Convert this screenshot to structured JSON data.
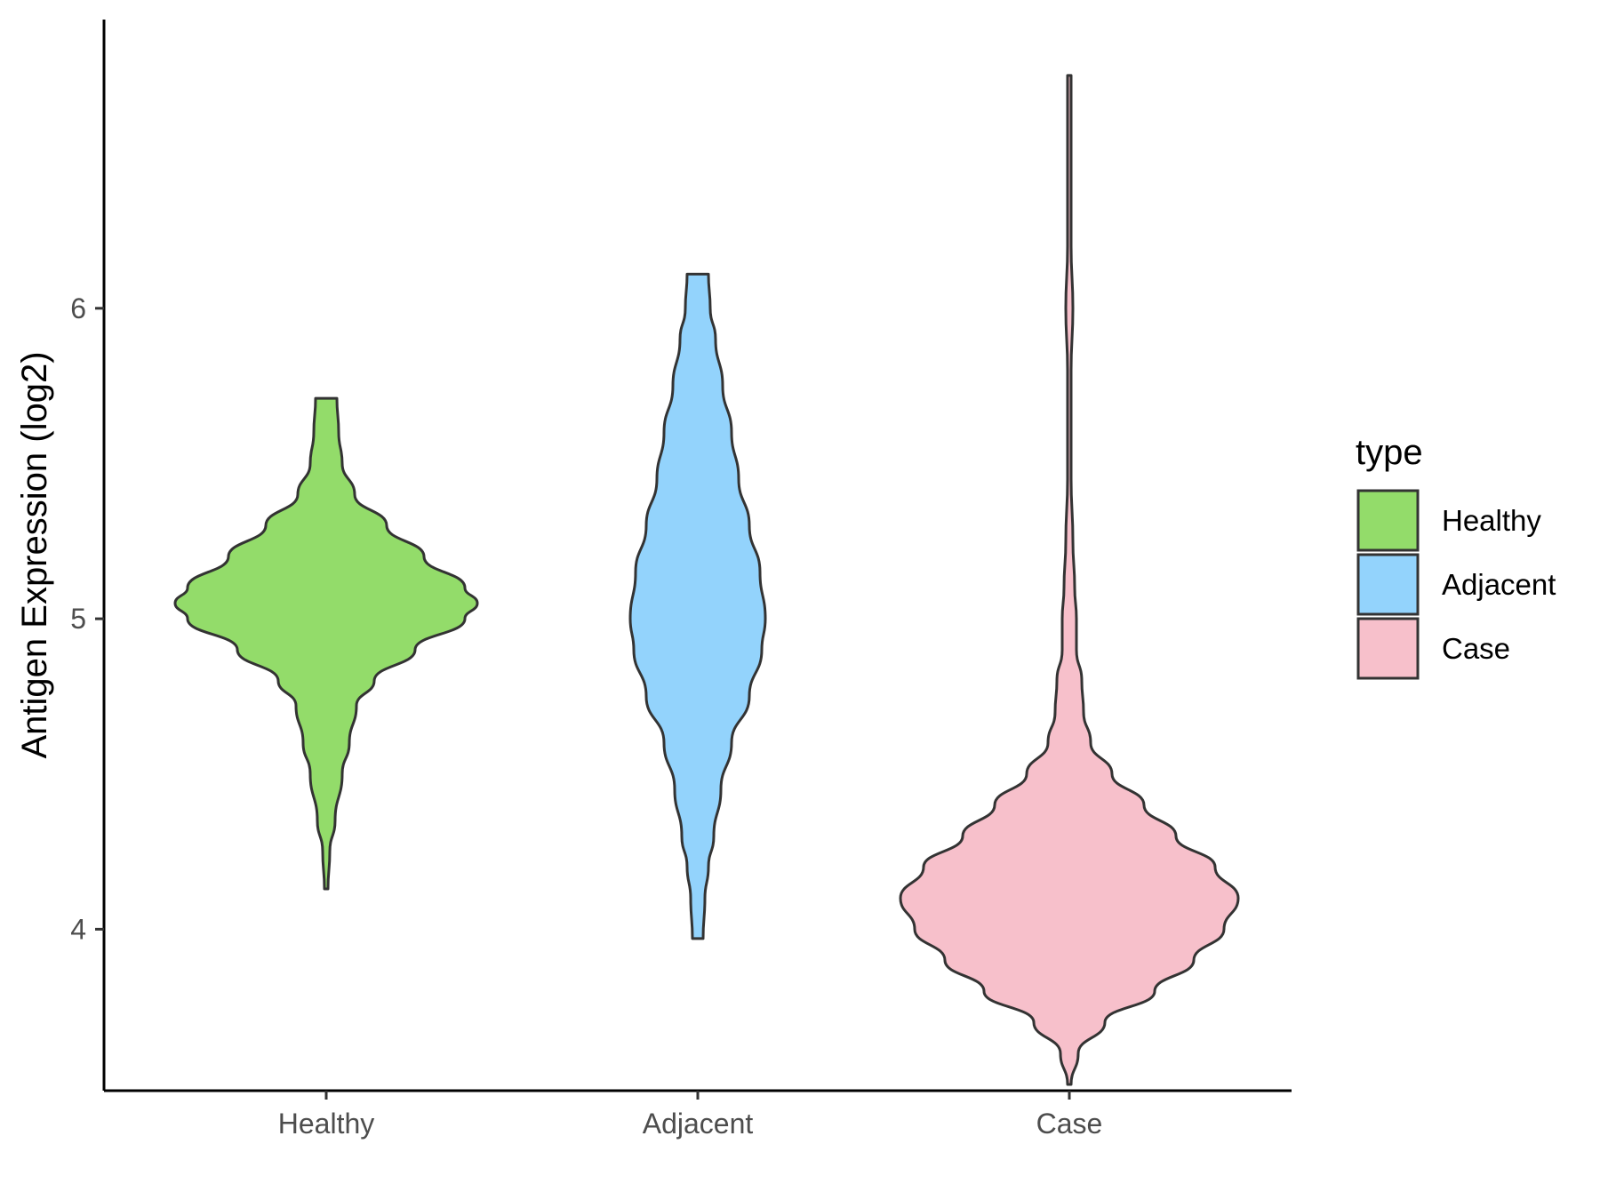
{
  "chart_data": {
    "type": "violin",
    "categories": [
      "Healthy",
      "Adjacent",
      "Case"
    ],
    "ylabel": "Antigen Expression (log2)",
    "xlabel": "",
    "ylim": [
      3.48,
      6.93
    ],
    "yticks": [
      4,
      5,
      6
    ],
    "grid": false,
    "legend": {
      "title": "type",
      "placement": "right",
      "entries": [
        "Healthy",
        "Adjacent",
        "Case"
      ]
    },
    "colors": {
      "Healthy": "#93DC6A",
      "Adjacent": "#93D3FC",
      "Case": "#F7C0CB",
      "outline": "#333333"
    },
    "series": [
      {
        "name": "Healthy",
        "min": 4.13,
        "max": 5.71,
        "profile": [
          [
            4.13,
            0.01
          ],
          [
            4.25,
            0.02
          ],
          [
            4.35,
            0.05
          ],
          [
            4.5,
            0.09
          ],
          [
            4.6,
            0.13
          ],
          [
            4.72,
            0.17
          ],
          [
            4.8,
            0.27
          ],
          [
            4.9,
            0.5
          ],
          [
            5.0,
            0.78
          ],
          [
            5.05,
            0.85
          ],
          [
            5.1,
            0.78
          ],
          [
            5.2,
            0.55
          ],
          [
            5.3,
            0.34
          ],
          [
            5.4,
            0.16
          ],
          [
            5.5,
            0.09
          ],
          [
            5.6,
            0.07
          ],
          [
            5.71,
            0.06
          ]
        ]
      },
      {
        "name": "Adjacent",
        "min": 3.97,
        "max": 6.11,
        "profile": [
          [
            3.97,
            0.03
          ],
          [
            4.1,
            0.04
          ],
          [
            4.2,
            0.06
          ],
          [
            4.3,
            0.09
          ],
          [
            4.45,
            0.13
          ],
          [
            4.6,
            0.19
          ],
          [
            4.75,
            0.29
          ],
          [
            4.9,
            0.36
          ],
          [
            5.0,
            0.38
          ],
          [
            5.15,
            0.35
          ],
          [
            5.3,
            0.29
          ],
          [
            5.45,
            0.23
          ],
          [
            5.6,
            0.19
          ],
          [
            5.75,
            0.14
          ],
          [
            5.9,
            0.1
          ],
          [
            6.0,
            0.07
          ],
          [
            6.11,
            0.06
          ]
        ]
      },
      {
        "name": "Case",
        "min": 3.5,
        "max": 6.75,
        "profile": [
          [
            3.5,
            0.01
          ],
          [
            3.6,
            0.05
          ],
          [
            3.7,
            0.2
          ],
          [
            3.8,
            0.48
          ],
          [
            3.9,
            0.7
          ],
          [
            4.0,
            0.87
          ],
          [
            4.1,
            0.95
          ],
          [
            4.2,
            0.82
          ],
          [
            4.3,
            0.6
          ],
          [
            4.4,
            0.42
          ],
          [
            4.5,
            0.24
          ],
          [
            4.6,
            0.12
          ],
          [
            4.7,
            0.08
          ],
          [
            4.8,
            0.07
          ],
          [
            4.9,
            0.04
          ],
          [
            5.0,
            0.04
          ],
          [
            5.1,
            0.03
          ],
          [
            5.25,
            0.02
          ],
          [
            5.45,
            0.01
          ],
          [
            5.6,
            0.01
          ],
          [
            5.8,
            0.01
          ],
          [
            6.0,
            0.02
          ],
          [
            6.2,
            0.01
          ],
          [
            6.5,
            0.01
          ],
          [
            6.75,
            0.01
          ]
        ]
      }
    ]
  }
}
